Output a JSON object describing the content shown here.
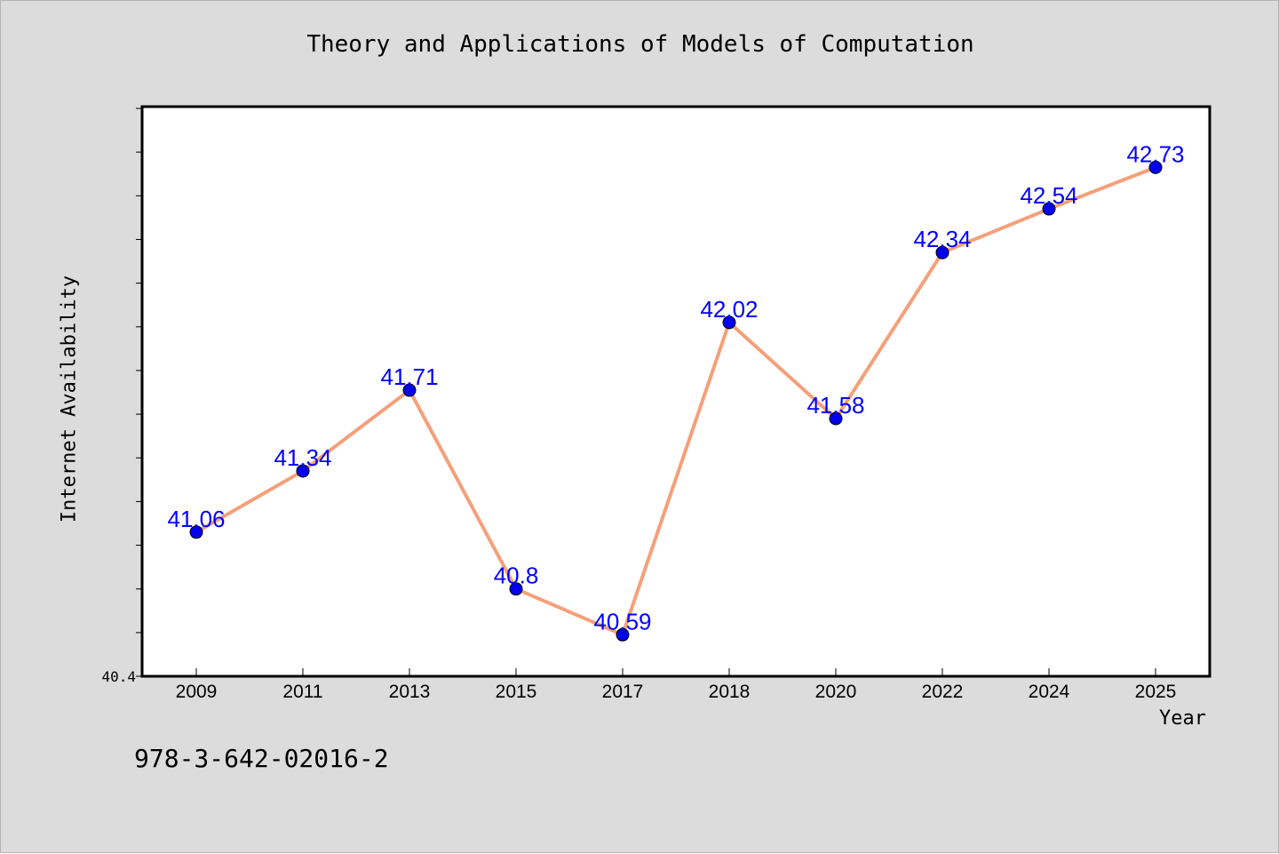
{
  "chart_data": {
    "type": "line",
    "title": "Theory and Applications of Models of Computation",
    "xlabel": "Year",
    "ylabel": "Internet Availability",
    "categories": [
      "2009",
      "2011",
      "2013",
      "2015",
      "2017",
      "2018",
      "2020",
      "2022",
      "2024",
      "2025"
    ],
    "series": [
      {
        "values": [
          41.06,
          41.34,
          41.71,
          40.8,
          40.59,
          42.02,
          41.58,
          42.34,
          42.54,
          42.73
        ],
        "labels": [
          "41.06",
          "41.34",
          "41.71",
          "40.8",
          "40.59",
          "42.02",
          "41.58",
          "42.34",
          "42.54",
          "42.73"
        ],
        "line_color": "#f4a07a",
        "marker_color": "#0000ee",
        "label_color": "#0000ff"
      }
    ],
    "ylim": [
      40.4,
      43.0
    ],
    "ytick_labels": [
      "40.4"
    ],
    "grid": false,
    "legend": "none"
  },
  "footer_text": "978-3-642-02016-2",
  "colors": {
    "figure_background": "#dcdcdc",
    "plot_background": "#ffffff",
    "axes_frame": "#000000"
  }
}
